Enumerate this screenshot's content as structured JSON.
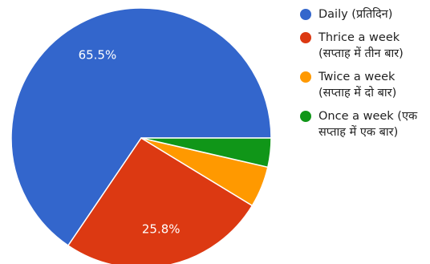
{
  "chart_data": {
    "type": "pie",
    "title": "",
    "slices": [
      {
        "label_line1": "Daily (प्रतिदिन)",
        "label_line2": "",
        "value": 65.5,
        "label": "65.5%",
        "color": "#3366cc"
      },
      {
        "label_line1": "Thrice a week",
        "label_line2": "(सप्ताह में तीन बार)",
        "value": 25.8,
        "label": "25.8%",
        "color": "#dc3912"
      },
      {
        "label_line1": "Twice a week",
        "label_line2": "(सप्ताह में दो बार)",
        "value": 5.1,
        "label": "",
        "color": "#ff9900"
      },
      {
        "label_line1": "Once a week (एक",
        "label_line2": "सप्ताह में एक बार)",
        "value": 3.6,
        "label": "",
        "color": "#109618"
      }
    ],
    "start_angle_deg": 0,
    "direction": "counterclockwise",
    "legend_position": "right"
  }
}
